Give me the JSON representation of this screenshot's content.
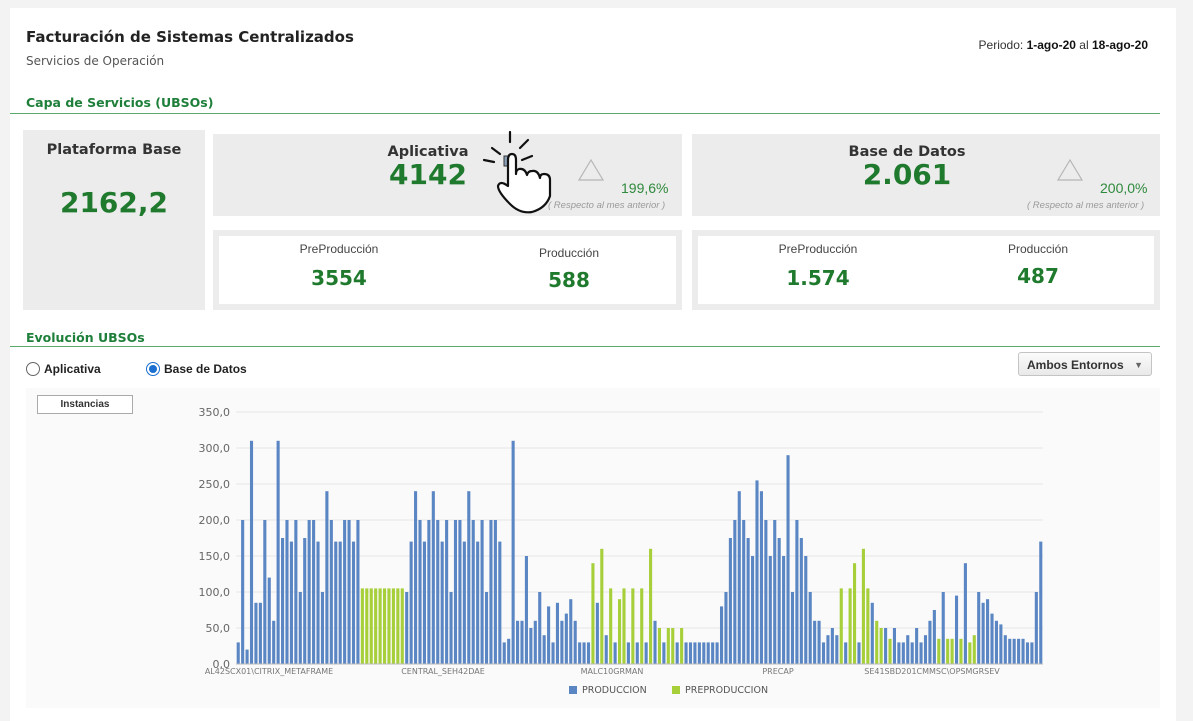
{
  "header": {
    "title": "Facturación de Sistemas Centralizados",
    "subtitle": "Servicios de Operación",
    "periodo_label": "Periodo:",
    "periodo_from": "1-ago-20",
    "periodo_sep": "al",
    "periodo_to": "18-ago-20"
  },
  "sections": {
    "capa": "Capa de Servicios (UBSOs)",
    "evolucion": "Evolución UBSOs"
  },
  "plataforma": {
    "title": "Plataforma Base",
    "value": "2162,2"
  },
  "aplicativa": {
    "title": "Aplicativa",
    "value": "4142",
    "pct": "199,6%",
    "note": "( Respecto al mes anterior )",
    "pre_label": "PreProducción",
    "pre_value": "3554",
    "pro_label": "Producción",
    "pro_value": "588"
  },
  "bd": {
    "title": "Base de Datos",
    "value": "2.061",
    "pct": "200,0%",
    "note": "( Respecto al mes anterior )",
    "pre_label": "PreProducción",
    "pre_value": "1.574",
    "pro_label": "Producción",
    "pro_value": "487"
  },
  "controls": {
    "radio_aplicativa": "Aplicativa",
    "radio_bd": "Base de Datos",
    "selected": "Base de Datos",
    "dropdown": "Ambos Entornos",
    "instancias_button": "Instancias"
  },
  "colors": {
    "produccion": "#5b86c4",
    "preproduccion": "#a6cf3a",
    "accent_green": "#1f7a2e"
  },
  "chart_data": {
    "type": "bar",
    "ylim": [
      0,
      350
    ],
    "yticks": [
      "0,0",
      "50,0",
      "100,0",
      "150,0",
      "200,0",
      "250,0",
      "300,0",
      "350,0"
    ],
    "xticks": [
      "AL42SCX01\\CITRIX_METAFRAME",
      "CENTRAL_SEH42DAE",
      "MALC10GRMAN",
      "PRECAP",
      "SE41SBD201CMMSC\\OPSMGRSEV"
    ],
    "series": [
      {
        "name": "PRODUCCION",
        "values": [
          30,
          200,
          20,
          310,
          85,
          85,
          200,
          120,
          60,
          310,
          175,
          200,
          170,
          200,
          100,
          175,
          200,
          200,
          170,
          100,
          240,
          200,
          170,
          170,
          200,
          200,
          170,
          200,
          100,
          170,
          240,
          200,
          170,
          200,
          240,
          200,
          170,
          200,
          100,
          200,
          200,
          170,
          240,
          200,
          170,
          200,
          100,
          200,
          200,
          170,
          30,
          35,
          310,
          60,
          60,
          150,
          50,
          60,
          100,
          40,
          80,
          30,
          85,
          60,
          70,
          90,
          60,
          30,
          30,
          30,
          85,
          40,
          30,
          30,
          30,
          30,
          60,
          30,
          30,
          30,
          30,
          30,
          30,
          30,
          30,
          30,
          30,
          80,
          100,
          175,
          200,
          240,
          200,
          175,
          150,
          255,
          240,
          200,
          150,
          200,
          175,
          150,
          290,
          100,
          200,
          175,
          150,
          100,
          60,
          60,
          30,
          40,
          50,
          40,
          30,
          30,
          85,
          50,
          50,
          30,
          30,
          40,
          30,
          50,
          30,
          40,
          60,
          75,
          100,
          95,
          140,
          100,
          85,
          90,
          70,
          60,
          55,
          40,
          35,
          35,
          35,
          35,
          30,
          30,
          100,
          170
        ],
        "fill_order": "P"
      },
      {
        "name": "PREPRODUCCION",
        "values": [
          105,
          105,
          105,
          105,
          105,
          105,
          105,
          105,
          105,
          105,
          140,
          160,
          105,
          90,
          105,
          105,
          105,
          160,
          50,
          50,
          50,
          50,
          105,
          105,
          140,
          160,
          105,
          60,
          50,
          35,
          35,
          35,
          35,
          35,
          30,
          40
        ]
      }
    ],
    "bar_pattern": "PPPPPPPPPPPPPPPPPPPPPPPPPPPPPPPPPPPPPPPPPPPPPPPPPPPPPPPPPPPPPPPPPPPPPPPPPP",
    "legend": "bottom-center"
  }
}
